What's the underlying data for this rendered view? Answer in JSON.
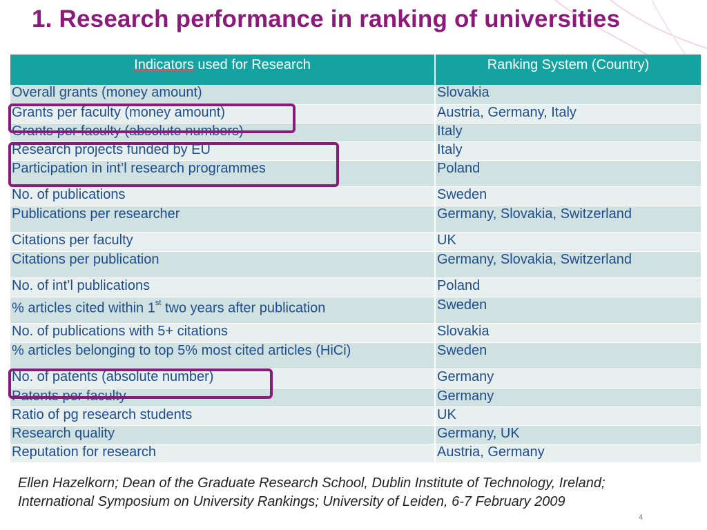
{
  "slide": {
    "title": "1. Research performance in ranking of universities",
    "page_number": "4",
    "citation": "Ellen Hazelkorn; Dean of the Graduate Research School, Dublin Institute of Technology, Ireland; International Symposium on University Rankings; University of Leiden, 6-7 February 2009"
  },
  "table": {
    "header": {
      "col1_underlined": "Indicators",
      "col1_rest": " used for Research",
      "col2": "Ranking System (Country)"
    },
    "rows": [
      {
        "indicator": "Overall grants (money amount)",
        "country": "Slovakia"
      },
      {
        "indicator": "Grants per faculty (money amount)",
        "country": "Austria, Germany, Italy"
      },
      {
        "indicator": "Grants per faculty (absolute numbers)",
        "country": "Italy"
      },
      {
        "indicator": "Research projects funded by EU",
        "country": "Italy"
      },
      {
        "indicator": "Participation in int’l research programmes",
        "country": "Poland"
      },
      {
        "indicator": "No. of publications",
        "country": "Sweden"
      },
      {
        "indicator": "Publications per researcher",
        "country": "Germany, Slovakia, Switzerland"
      },
      {
        "indicator": "Citations per faculty",
        "country": "UK"
      },
      {
        "indicator": "Citations per publication",
        "country": "Germany, Slovakia, Switzerland"
      },
      {
        "indicator": "No. of int’l publications",
        "country": "Poland"
      },
      {
        "indicator_pre": "% articles cited within 1",
        "indicator_sup": "st",
        "indicator_post": " two years after publication",
        "country": "Sweden"
      },
      {
        "indicator": "No. of publications with 5+ citations",
        "country": "Slovakia"
      },
      {
        "indicator": "% articles belonging to top 5% most cited articles (HiCi)",
        "country": "Sweden"
      },
      {
        "indicator": "No. of patents (absolute number)",
        "country": "Germany"
      },
      {
        "indicator": "Patents per faculty",
        "country": "Germany"
      },
      {
        "indicator": "Ratio of pg research students",
        "country": "UK"
      },
      {
        "indicator": "Research quality",
        "country": "Germany, UK"
      },
      {
        "indicator": "Reputation for research",
        "country": "Austria, Germany"
      }
    ]
  },
  "colors": {
    "title": "#8b1a7a",
    "header_bg": "#17a2a2",
    "row_odd": "#cfe1e1",
    "row_even": "#e7efef",
    "table_text": "#1f4d8c",
    "highlight_box": "#8b1a7a"
  }
}
